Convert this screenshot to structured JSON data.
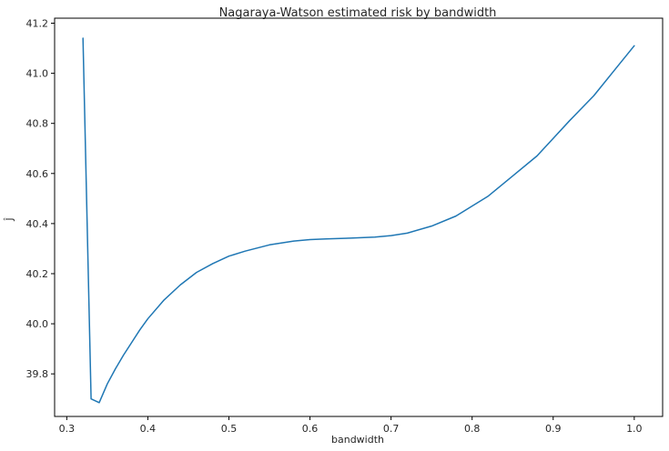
{
  "chart_data": {
    "type": "line",
    "title": "Nagaraya-Watson estimated risk by bandwidth",
    "xlabel": "bandwidth",
    "ylabel": "Ĵ",
    "xlim": [
      0.285,
      1.035
    ],
    "ylim": [
      39.63,
      41.22
    ],
    "xticks": [
      "0.3",
      "0.4",
      "0.5",
      "0.6",
      "0.7",
      "0.8",
      "0.9",
      "1.0"
    ],
    "yticks": [
      "39.8",
      "40.0",
      "40.2",
      "40.4",
      "40.6",
      "40.8",
      "41.0",
      "41.2"
    ],
    "grid": false,
    "series_color": "#1f77b4",
    "series": [
      {
        "x": [
          0.32,
          0.33,
          0.34,
          0.35,
          0.36,
          0.37,
          0.38,
          0.39,
          0.4,
          0.42,
          0.44,
          0.46,
          0.48,
          0.5,
          0.52,
          0.55,
          0.58,
          0.6,
          0.62,
          0.65,
          0.68,
          0.7,
          0.72,
          0.75,
          0.78,
          0.8,
          0.82,
          0.85,
          0.88,
          0.9,
          0.92,
          0.95,
          0.98,
          1.0
        ],
        "y": [
          41.14,
          39.7,
          39.685,
          39.76,
          39.82,
          39.875,
          39.925,
          39.975,
          40.02,
          40.095,
          40.155,
          40.205,
          40.24,
          40.27,
          40.29,
          40.315,
          40.33,
          40.336,
          40.339,
          40.342,
          40.346,
          40.352,
          40.362,
          40.39,
          40.43,
          40.47,
          40.51,
          40.59,
          40.67,
          40.74,
          40.81,
          40.91,
          41.03,
          41.11
        ]
      }
    ]
  }
}
